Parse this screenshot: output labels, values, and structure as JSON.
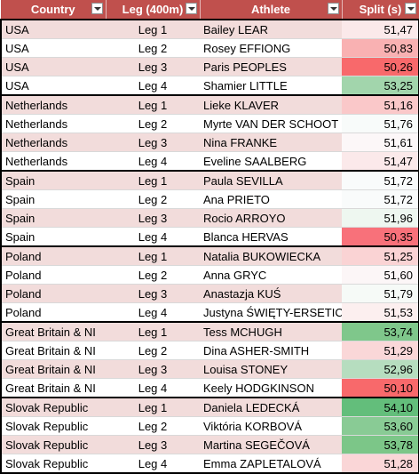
{
  "headers": {
    "country": "Country",
    "leg": "Leg (400m)",
    "athlete": "Athlete",
    "split": "Split (s)"
  },
  "rows": [
    {
      "country": "USA",
      "leg": "Leg 1",
      "athlete": "Bailey LEAR",
      "split": "51,47",
      "color": "#fbe9ea"
    },
    {
      "country": "USA",
      "leg": "Leg 2",
      "athlete": "Rosey EFFIONG",
      "split": "50,83",
      "color": "#f9b1b2"
    },
    {
      "country": "USA",
      "leg": "Leg 3",
      "athlete": "Paris PEOPLES",
      "split": "50,26",
      "color": "#f8696b"
    },
    {
      "country": "USA",
      "leg": "Leg 4",
      "athlete": "Shamier LITTLE",
      "split": "53,25",
      "color": "#a2d5ac"
    },
    {
      "country": "Netherlands",
      "leg": "Leg 1",
      "athlete": "Lieke KLAVER",
      "split": "51,16",
      "color": "#fac8c9"
    },
    {
      "country": "Netherlands",
      "leg": "Leg 2",
      "athlete": "Myrte VAN DER SCHOOT",
      "split": "51,76",
      "color": "#f8fbfa"
    },
    {
      "country": "Netherlands",
      "leg": "Leg 3",
      "athlete": "Nina FRANKE",
      "split": "51,61",
      "color": "#fcf7f8"
    },
    {
      "country": "Netherlands",
      "leg": "Leg 4",
      "athlete": "Eveline SAALBERG",
      "split": "51,47",
      "color": "#fbe9ea"
    },
    {
      "country": "Spain",
      "leg": "Leg 1",
      "athlete": "Paula SEVILLA",
      "split": "51,72",
      "color": "#f9fbfb"
    },
    {
      "country": "Spain",
      "leg": "Leg 2",
      "athlete": "Ana PRIETO",
      "split": "51,72",
      "color": "#f9fbfb"
    },
    {
      "country": "Spain",
      "leg": "Leg 3",
      "athlete": "Rocio ARROYO",
      "split": "51,96",
      "color": "#eef7f0"
    },
    {
      "country": "Spain",
      "leg": "Leg 4",
      "athlete": "Blanca HERVAS",
      "split": "50,35",
      "color": "#f8717a"
    },
    {
      "country": "Poland",
      "leg": "Leg 1",
      "athlete": "Natalia BUKOWIECKA",
      "split": "51,25",
      "color": "#fad3d4"
    },
    {
      "country": "Poland",
      "leg": "Leg 2",
      "athlete": "Anna GRYC",
      "split": "51,60",
      "color": "#fcf6f7"
    },
    {
      "country": "Poland",
      "leg": "Leg 3",
      "athlete": "Anastazja KUŚ",
      "split": "51,79",
      "color": "#f6faf7"
    },
    {
      "country": "Poland",
      "leg": "Leg 4",
      "athlete": "Justyna ŚWIĘTY-ERSETIC",
      "split": "51,53",
      "color": "#fcefef"
    },
    {
      "country": "Great Britain & NI",
      "leg": "Leg 1",
      "athlete": "Tess MCHUGH",
      "split": "53,74",
      "color": "#7fc78b"
    },
    {
      "country": "Great Britain & NI",
      "leg": "Leg 2",
      "athlete": "Dina ASHER-SMITH",
      "split": "51,29",
      "color": "#fad7d8"
    },
    {
      "country": "Great Britain & NI",
      "leg": "Leg 3",
      "athlete": "Louisa STONEY",
      "split": "52,96",
      "color": "#b6ddbf"
    },
    {
      "country": "Great Britain & NI",
      "leg": "Leg 4",
      "athlete": "Keely HODGKINSON",
      "split": "50,10",
      "color": "#f8696b"
    },
    {
      "country": "Slovak Republic",
      "leg": "Leg 1",
      "athlete": "Daniela LEDECKÁ",
      "split": "54,10",
      "color": "#63be7b"
    },
    {
      "country": "Slovak Republic",
      "leg": "Leg 2",
      "athlete": "Viktória KORBOVÁ",
      "split": "53,60",
      "color": "#89cb95"
    },
    {
      "country": "Slovak Republic",
      "leg": "Leg 3",
      "athlete": "Martina SEGEČOVÁ",
      "split": "53,78",
      "color": "#7cc688"
    },
    {
      "country": "Slovak Republic",
      "leg": "Leg 4",
      "athlete": "Emma ZAPLETALOVÁ",
      "split": "51,28",
      "color": "#fad6d7"
    }
  ]
}
